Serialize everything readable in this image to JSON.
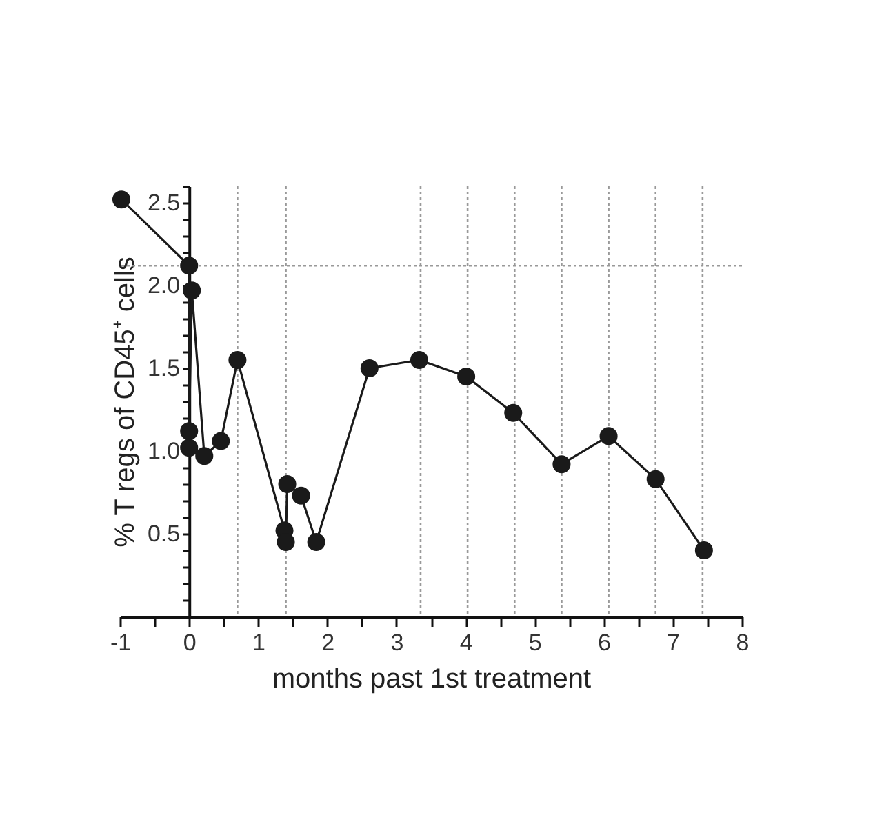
{
  "chart_data": {
    "type": "line",
    "xlabel": "months past 1st treatment",
    "ylabel": "% T regs of CD45⁺ cells",
    "x": [
      -0.98,
      0,
      0,
      0,
      0.04,
      0.22,
      0.46,
      0.7,
      1.38,
      1.4,
      1.42,
      1.62,
      1.84,
      2.61,
      3.33,
      4.01,
      4.69,
      5.39,
      6.07,
      6.75,
      7.45
    ],
    "series": [
      {
        "color": "#1a1a1a",
        "values": [
          2.52,
          2.12,
          1.02,
          1.12,
          1.97,
          0.97,
          1.06,
          1.55,
          0.52,
          0.45,
          0.8,
          0.73,
          0.45,
          1.5,
          1.55,
          1.45,
          1.23,
          0.92,
          1.09,
          0.83,
          0.4
        ]
      }
    ],
    "marker": "circle",
    "line_style": "solid",
    "grid": false,
    "xlim": [
      -1,
      8
    ],
    "xticks": [
      -1,
      {
        "value": -0.5,
        "label": null
      },
      0,
      {
        "value": 0.5,
        "label": null
      },
      1,
      {
        "value": 1.5,
        "label": null
      },
      2,
      {
        "value": 2.5,
        "label": null
      },
      3,
      {
        "value": 3.5,
        "label": null
      },
      4,
      {
        "value": 4.5,
        "label": null
      },
      5,
      {
        "value": 5.5,
        "label": null
      },
      6,
      {
        "value": 6.5,
        "label": null
      },
      7,
      {
        "value": 7.5,
        "label": null
      },
      8
    ],
    "ylim": [
      0,
      2.6
    ],
    "yticks": [
      {
        "value": 0.1,
        "label": null
      },
      {
        "value": 0.2,
        "label": null
      },
      {
        "value": 0.3,
        "label": null
      },
      {
        "value": 0.4,
        "label": null
      },
      0.5,
      {
        "value": 0.6,
        "label": null
      },
      {
        "value": 0.7,
        "label": null
      },
      {
        "value": 0.8,
        "label": null
      },
      {
        "value": 0.9,
        "label": null
      },
      {
        "value": 1.0,
        "label": "1.0"
      },
      {
        "value": 1.1,
        "label": null
      },
      {
        "value": 1.2,
        "label": null
      },
      {
        "value": 1.3,
        "label": null
      },
      {
        "value": 1.4,
        "label": null
      },
      1.5,
      {
        "value": 1.6,
        "label": null
      },
      {
        "value": 1.7,
        "label": null
      },
      {
        "value": 1.8,
        "label": null
      },
      {
        "value": 1.9,
        "label": null
      },
      {
        "value": 2.0,
        "label": "2.0"
      },
      {
        "value": 2.1,
        "label": null
      },
      {
        "value": 2.2,
        "label": null
      },
      {
        "value": 2.3,
        "label": null
      },
      {
        "value": 2.4,
        "label": null
      },
      2.5,
      {
        "value": 2.6,
        "label": null
      }
    ],
    "ref_lines": [
      {
        "axis": "y",
        "value": 2.12,
        "color": "#999999",
        "line_style": "dotted"
      },
      {
        "axis": "x",
        "value": 0.7,
        "color": "#999999",
        "line_style": "dotted"
      },
      {
        "axis": "x",
        "value": 1.4,
        "color": "#999999",
        "line_style": "dotted"
      },
      {
        "axis": "x",
        "value": 3.35,
        "color": "#999999",
        "line_style": "dotted"
      },
      {
        "axis": "x",
        "value": 4.03,
        "color": "#999999",
        "line_style": "dotted"
      },
      {
        "axis": "x",
        "value": 4.71,
        "color": "#999999",
        "line_style": "dotted"
      },
      {
        "axis": "x",
        "value": 5.39,
        "color": "#999999",
        "line_style": "dotted"
      },
      {
        "axis": "x",
        "value": 6.07,
        "color": "#999999",
        "line_style": "dotted"
      },
      {
        "axis": "x",
        "value": 6.75,
        "color": "#999999",
        "line_style": "dotted"
      },
      {
        "axis": "x",
        "value": 7.43,
        "color": "#999999",
        "line_style": "dotted"
      }
    ]
  }
}
